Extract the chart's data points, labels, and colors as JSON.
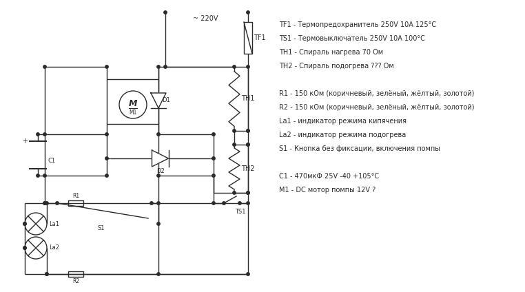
{
  "bg_color": "#ffffff",
  "line_color": "#2a2a2a",
  "text_color": "#2a2a2a",
  "legend_lines": [
    "TF1 - Термопредохранитель 250V 10A 125°C",
    "TS1 - Термовыключатель 250V 10A 100°C",
    "TH1 - Спираль нагрева 70 Ом",
    "TH2 - Спираль подогрева ??? Ом",
    "",
    "R1 - 150 кОм (коричневый, зелёный, жёлтый, золотой)",
    "R2 - 150 кОм (коричневый, зелёный, жёлтый, золотой)",
    "La1 - индикатор режима кипячения",
    "La2 - индикатор режима подогрева",
    "S1 - Кнопка без фиксации, включения помпы",
    "",
    "C1 - 470мкФ 25V -40 +105°C",
    "M1 - DC мотор помпы 12V ?"
  ]
}
